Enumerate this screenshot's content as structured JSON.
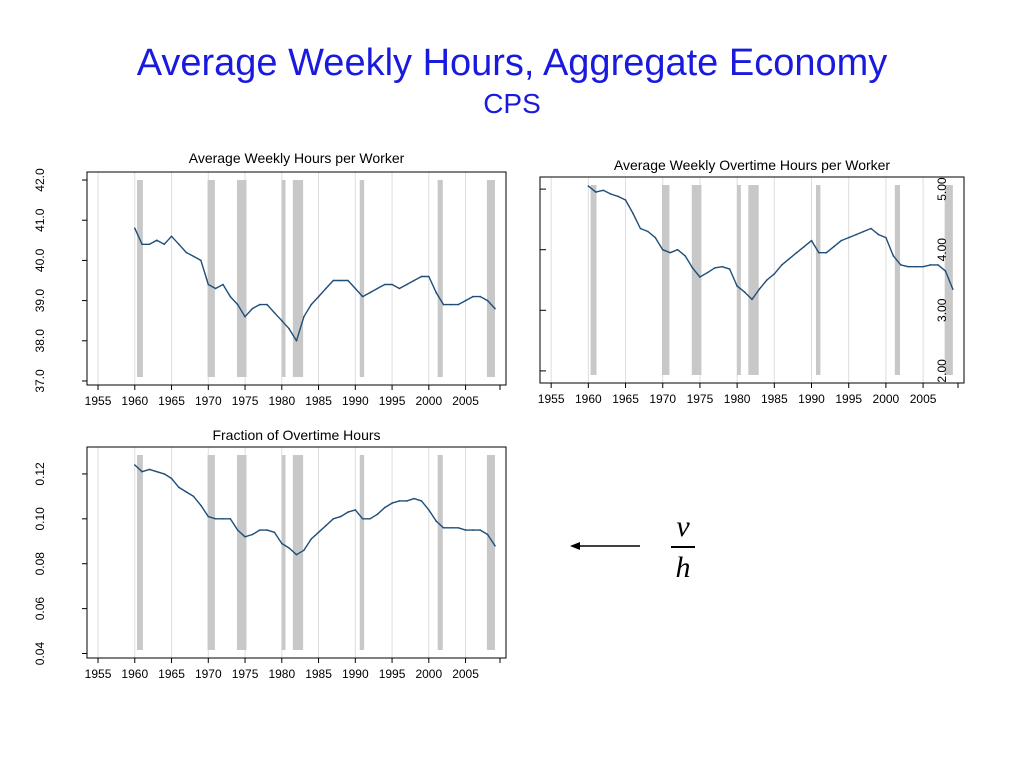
{
  "slide": {
    "title": "Average Weekly Hours, Aggregate Economy",
    "subtitle": "CPS"
  },
  "colors": {
    "title": "#1a1adf",
    "line": "#1f4e79",
    "recession": "#c8c8c8",
    "grid": "#dddddd"
  },
  "recessions": [
    [
      1960.3,
      1961.1
    ],
    [
      1969.9,
      1970.9
    ],
    [
      1973.9,
      1975.2
    ],
    [
      1980.0,
      1980.5
    ],
    [
      1981.5,
      1982.9
    ],
    [
      1990.6,
      1991.2
    ],
    [
      2001.2,
      2001.9
    ],
    [
      2007.9,
      2009.0
    ]
  ],
  "fraction": {
    "numerator": "v",
    "denominator": "h"
  },
  "chart_data": [
    {
      "type": "line",
      "title": "Average Weekly Hours per Worker",
      "xlim": [
        1953.5,
        2010.5
      ],
      "ylim": [
        36.9,
        42.2
      ],
      "xticks": [
        1955,
        1960,
        1965,
        1970,
        1975,
        1980,
        1985,
        1990,
        1995,
        2000,
        2005
      ],
      "yticks": [
        37.0,
        38.0,
        39.0,
        40.0,
        41.0,
        42.0
      ],
      "ytick_labels": [
        "37.0",
        "38.0",
        "39.0",
        "40.0",
        "41.0",
        "42.0"
      ],
      "grid": "vertical",
      "series": [
        {
          "x": [
            1960.0,
            1961.0,
            1962.0,
            1963.0,
            1964.0,
            1965.0,
            1966.0,
            1967.0,
            1968.0,
            1969.0,
            1970.0,
            1971.0,
            1972.0,
            1973.0,
            1974.0,
            1975.0,
            1976.0,
            1977.0,
            1978.0,
            1979.0,
            1980.0,
            1981.0,
            1982.0,
            1983.0,
            1984.0,
            1985.0,
            1986.0,
            1987.0,
            1988.0,
            1989.0,
            1990.0,
            1991.0,
            1992.0,
            1993.0,
            1994.0,
            1995.0,
            1996.0,
            1997.0,
            1998.0,
            1999.0,
            2000.0,
            2001.0,
            2002.0,
            2003.0,
            2004.0,
            2005.0,
            2006.0,
            2007.0,
            2008.0,
            2009.0
          ],
          "y": [
            40.8,
            40.4,
            40.4,
            40.5,
            40.4,
            40.6,
            40.4,
            40.2,
            40.1,
            40.0,
            39.4,
            39.3,
            39.4,
            39.1,
            38.9,
            38.6,
            38.8,
            38.9,
            38.9,
            38.7,
            38.5,
            38.3,
            38.0,
            38.6,
            38.9,
            39.1,
            39.3,
            39.5,
            39.5,
            39.5,
            39.3,
            39.1,
            39.2,
            39.3,
            39.4,
            39.4,
            39.3,
            39.4,
            39.5,
            39.6,
            39.6,
            39.2,
            38.9,
            38.9,
            38.9,
            39.0,
            39.1,
            39.1,
            39.0,
            38.8
          ]
        }
      ]
    },
    {
      "type": "line",
      "title": "Average Weekly Overtime Hours per Worker",
      "xlim": [
        1953.5,
        2010.5
      ],
      "ylim": [
        1.8,
        5.2
      ],
      "xticks": [
        1955,
        1960,
        1965,
        1970,
        1975,
        1980,
        1985,
        1990,
        1995,
        2000,
        2005
      ],
      "yticks": [
        2.0,
        3.0,
        4.0,
        5.0
      ],
      "ytick_labels": [
        "2.00",
        "3.00",
        "4.00",
        "5.00"
      ],
      "grid": "vertical",
      "series": [
        {
          "x": [
            1960.0,
            1961.0,
            1962.0,
            1963.0,
            1964.0,
            1965.0,
            1966.0,
            1967.0,
            1968.0,
            1969.0,
            1970.0,
            1971.0,
            1972.0,
            1973.0,
            1974.0,
            1975.0,
            1976.0,
            1977.0,
            1978.0,
            1979.0,
            1980.0,
            1981.0,
            1982.0,
            1983.0,
            1984.0,
            1985.0,
            1986.0,
            1987.0,
            1988.0,
            1989.0,
            1990.0,
            1991.0,
            1992.0,
            1993.0,
            1994.0,
            1995.0,
            1996.0,
            1997.0,
            1998.0,
            1999.0,
            2000.0,
            2001.0,
            2002.0,
            2003.0,
            2004.0,
            2005.0,
            2006.0,
            2007.0,
            2008.0,
            2009.0
          ],
          "y": [
            5.05,
            4.95,
            4.98,
            4.92,
            4.88,
            4.82,
            4.6,
            4.35,
            4.3,
            4.2,
            4.0,
            3.95,
            4.0,
            3.9,
            3.7,
            3.55,
            3.62,
            3.7,
            3.72,
            3.68,
            3.4,
            3.3,
            3.18,
            3.35,
            3.5,
            3.6,
            3.75,
            3.85,
            3.95,
            4.05,
            4.15,
            3.95,
            3.95,
            4.05,
            4.15,
            4.2,
            4.25,
            4.3,
            4.35,
            4.25,
            4.2,
            3.9,
            3.75,
            3.72,
            3.72,
            3.72,
            3.75,
            3.75,
            3.65,
            3.35
          ]
        }
      ]
    },
    {
      "type": "line",
      "title": "Fraction of Overtime Hours",
      "xlim": [
        1953.5,
        2010.5
      ],
      "ylim": [
        0.038,
        0.132
      ],
      "xticks": [
        1955,
        1960,
        1965,
        1970,
        1975,
        1980,
        1985,
        1990,
        1995,
        2000,
        2005
      ],
      "yticks": [
        0.04,
        0.06,
        0.08,
        0.1,
        0.12
      ],
      "ytick_labels": [
        "0.04",
        "0.06",
        "0.08",
        "0.10",
        "0.12"
      ],
      "grid": "vertical",
      "series": [
        {
          "x": [
            1960.0,
            1961.0,
            1962.0,
            1963.0,
            1964.0,
            1965.0,
            1966.0,
            1967.0,
            1968.0,
            1969.0,
            1970.0,
            1971.0,
            1972.0,
            1973.0,
            1974.0,
            1975.0,
            1976.0,
            1977.0,
            1978.0,
            1979.0,
            1980.0,
            1981.0,
            1982.0,
            1983.0,
            1984.0,
            1985.0,
            1986.0,
            1987.0,
            1988.0,
            1989.0,
            1990.0,
            1991.0,
            1992.0,
            1993.0,
            1994.0,
            1995.0,
            1996.0,
            1997.0,
            1998.0,
            1999.0,
            2000.0,
            2001.0,
            2002.0,
            2003.0,
            2004.0,
            2005.0,
            2006.0,
            2007.0,
            2008.0,
            2009.0
          ],
          "y": [
            0.124,
            0.121,
            0.122,
            0.121,
            0.12,
            0.118,
            0.114,
            0.112,
            0.11,
            0.106,
            0.101,
            0.1,
            0.1,
            0.1,
            0.095,
            0.092,
            0.093,
            0.095,
            0.095,
            0.094,
            0.089,
            0.087,
            0.084,
            0.086,
            0.091,
            0.094,
            0.097,
            0.1,
            0.101,
            0.103,
            0.104,
            0.1,
            0.1,
            0.102,
            0.105,
            0.107,
            0.108,
            0.108,
            0.109,
            0.108,
            0.104,
            0.099,
            0.096,
            0.096,
            0.096,
            0.095,
            0.095,
            0.095,
            0.093,
            0.088
          ]
        }
      ]
    }
  ]
}
